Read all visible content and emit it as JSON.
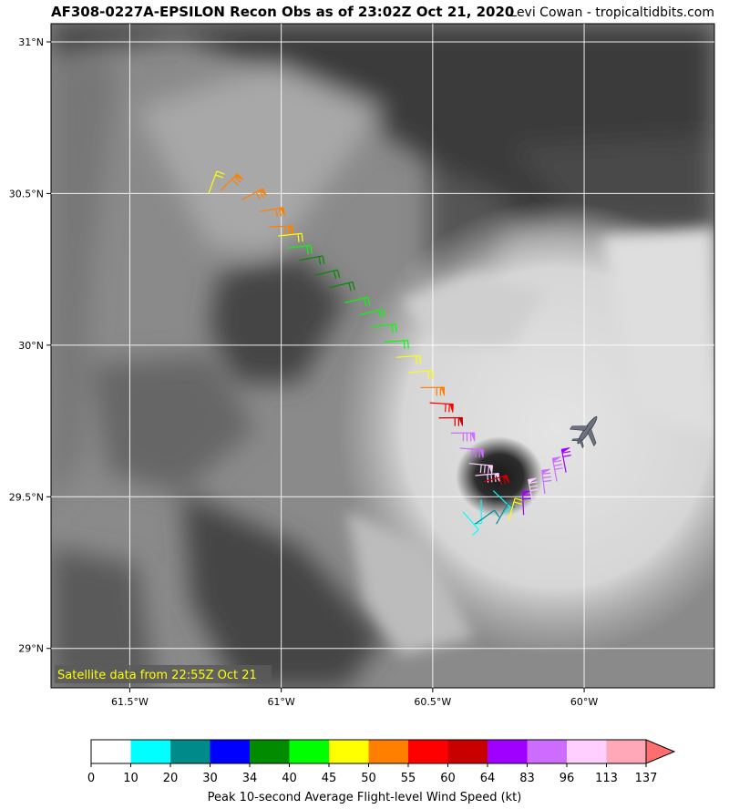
{
  "header": {
    "title": "AF308-0227A-EPSILON Recon Obs as of 23:02Z Oct 21, 2020",
    "credit": "Levi Cowan - tropicaltidbits.com"
  },
  "map": {
    "lon_range": [
      -61.76,
      -59.57
    ],
    "lat_range": [
      28.87,
      31.06
    ],
    "lat_ticks": [
      {
        "value": 31.0,
        "label": "31°N"
      },
      {
        "value": 30.5,
        "label": "30.5°N"
      },
      {
        "value": 30.0,
        "label": "30°N"
      },
      {
        "value": 29.5,
        "label": "29.5°N"
      },
      {
        "value": 29.0,
        "label": "29°N"
      }
    ],
    "lon_ticks": [
      {
        "value": -61.5,
        "label": "61.5°W"
      },
      {
        "value": -61.0,
        "label": "61°W"
      },
      {
        "value": -60.5,
        "label": "60.5°W"
      },
      {
        "value": -60.0,
        "label": "60°W"
      }
    ],
    "grid": true,
    "satellite_note": "Satellite data from 22:55Z Oct 21",
    "eye_center": {
      "lon": -60.28,
      "lat": 29.54
    },
    "aircraft": {
      "lon": -59.99,
      "lat": 29.72,
      "icon": "airplane-icon"
    },
    "flight_track": [
      {
        "lon": -61.24,
        "lat": 30.5,
        "kt": 45
      },
      {
        "lon": -61.2,
        "lat": 30.51,
        "kt": 50
      },
      {
        "lon": -61.13,
        "lat": 30.48,
        "kt": 50
      },
      {
        "lon": -61.07,
        "lat": 30.44,
        "kt": 50
      },
      {
        "lon": -61.04,
        "lat": 30.39,
        "kt": 50
      },
      {
        "lon": -61.01,
        "lat": 30.36,
        "kt": 45
      },
      {
        "lon": -60.98,
        "lat": 30.32,
        "kt": 40
      },
      {
        "lon": -60.94,
        "lat": 30.28,
        "kt": 34
      },
      {
        "lon": -60.89,
        "lat": 30.23,
        "kt": 34
      },
      {
        "lon": -60.84,
        "lat": 30.19,
        "kt": 34
      },
      {
        "lon": -60.79,
        "lat": 30.14,
        "kt": 40
      },
      {
        "lon": -60.74,
        "lat": 30.1,
        "kt": 40
      },
      {
        "lon": -60.7,
        "lat": 30.06,
        "kt": 40
      },
      {
        "lon": -60.66,
        "lat": 30.01,
        "kt": 40
      },
      {
        "lon": -60.62,
        "lat": 29.96,
        "kt": 45
      },
      {
        "lon": -60.58,
        "lat": 29.91,
        "kt": 45
      },
      {
        "lon": -60.54,
        "lat": 29.86,
        "kt": 50
      },
      {
        "lon": -60.51,
        "lat": 29.81,
        "kt": 55
      },
      {
        "lon": -60.48,
        "lat": 29.76,
        "kt": 60
      },
      {
        "lon": -60.44,
        "lat": 29.71,
        "kt": 83
      },
      {
        "lon": -60.41,
        "lat": 29.66,
        "kt": 83
      },
      {
        "lon": -60.38,
        "lat": 29.61,
        "kt": 96
      },
      {
        "lon": -60.36,
        "lat": 29.57,
        "kt": 96
      },
      {
        "lon": -60.33,
        "lat": 29.55,
        "kt": 60
      },
      {
        "lon": -60.3,
        "lat": 29.52,
        "kt": 10
      },
      {
        "lon": -60.34,
        "lat": 29.49,
        "kt": 10
      },
      {
        "lon": -60.4,
        "lat": 29.45,
        "kt": 10
      },
      {
        "lon": -60.36,
        "lat": 29.41,
        "kt": 20
      },
      {
        "lon": -60.29,
        "lat": 29.41,
        "kt": 20
      },
      {
        "lon": -60.25,
        "lat": 29.42,
        "kt": 45
      },
      {
        "lon": -60.2,
        "lat": 29.44,
        "kt": 64
      },
      {
        "lon": -60.17,
        "lat": 29.48,
        "kt": 96
      },
      {
        "lon": -60.13,
        "lat": 29.51,
        "kt": 83
      },
      {
        "lon": -60.09,
        "lat": 29.55,
        "kt": 83
      },
      {
        "lon": -60.06,
        "lat": 29.58,
        "kt": 64
      }
    ]
  },
  "colorbar": {
    "label": "Peak 10-second Average Flight-level Wind Speed (kt)",
    "ticks": [
      "0",
      "10",
      "20",
      "30",
      "34",
      "40",
      "45",
      "50",
      "55",
      "60",
      "64",
      "83",
      "96",
      "113",
      "137"
    ],
    "colors": [
      "#ffffff",
      "#00ffff",
      "#008b8b",
      "#0000ff",
      "#008b00",
      "#00ff00",
      "#ffff00",
      "#ff8000",
      "#ff0000",
      "#c80000",
      "#a000ff",
      "#cd6cff",
      "#ffd0ff",
      "#ffa8b8"
    ],
    "extend_color": "#ff6e6e"
  }
}
